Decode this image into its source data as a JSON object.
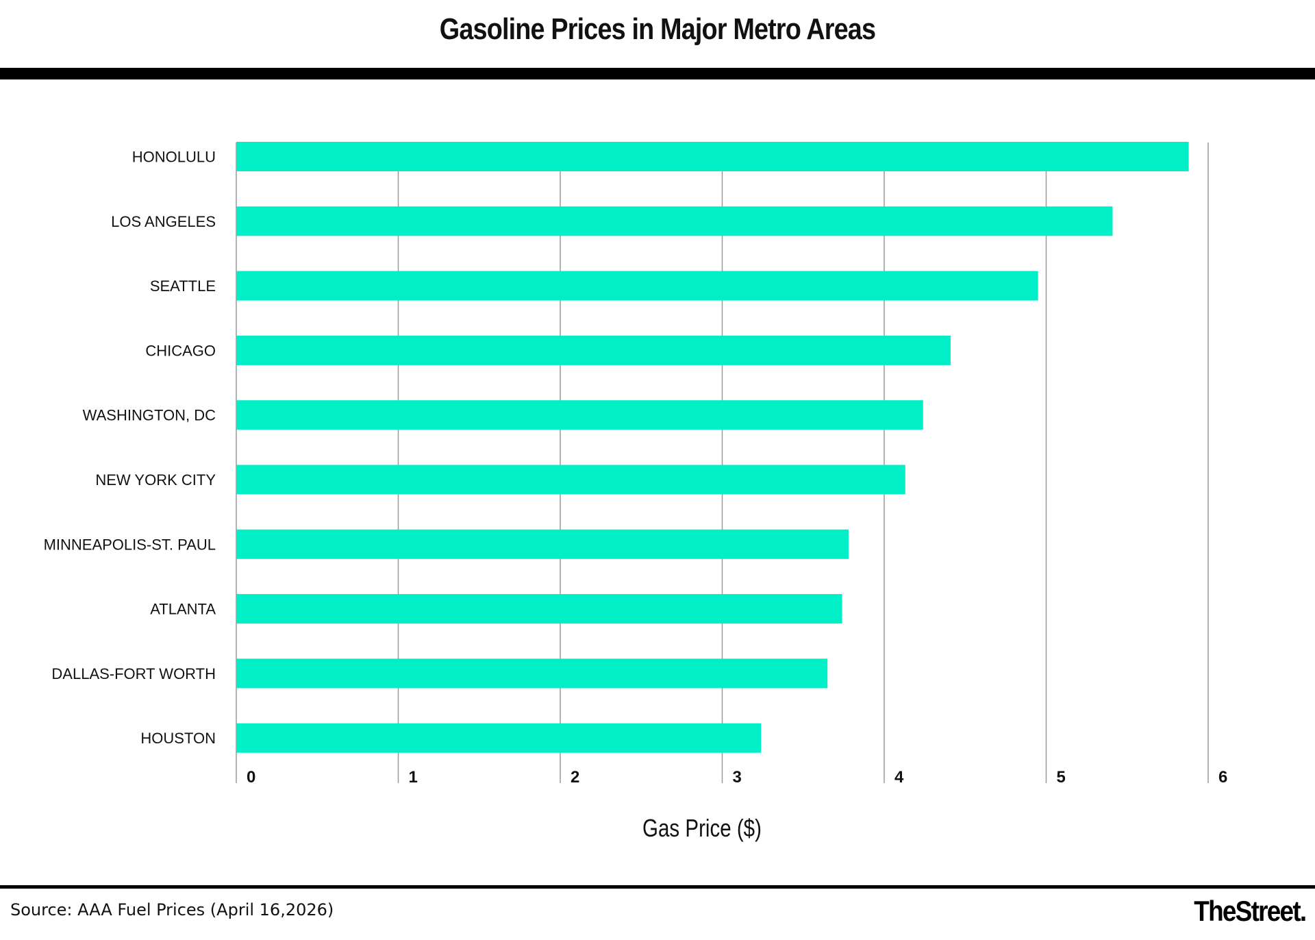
{
  "header": {
    "title": "Gasoline Prices in Major Metro Areas"
  },
  "footer": {
    "source": "Source: AAA Fuel Prices (April 16,2026)",
    "logo_text": "TheStreet."
  },
  "colors": {
    "bar": "#00efc7",
    "grid": "#9a9a9a",
    "rule": "#000000"
  },
  "chart_data": {
    "type": "bar",
    "orientation": "horizontal",
    "title": "Gasoline Prices in Major Metro Areas",
    "xlabel": "Gas Price ($)",
    "ylabel": "",
    "xlim": [
      0,
      6
    ],
    "x_ticks": [
      "0",
      "1",
      "2",
      "3",
      "4",
      "5",
      "6"
    ],
    "grid": "vertical",
    "categories": [
      "HONOLULU",
      "LOS ANGELES",
      "SEATTLE",
      "CHICAGO",
      "WASHINGTON, DC",
      "NEW YORK CITY",
      "MINNEAPOLIS-ST. PAUL",
      "ATLANTA",
      "DALLAS-FORT WORTH",
      "HOUSTON"
    ],
    "values": [
      5.88,
      5.41,
      4.95,
      4.41,
      4.24,
      4.13,
      3.78,
      3.74,
      3.65,
      3.24
    ]
  }
}
